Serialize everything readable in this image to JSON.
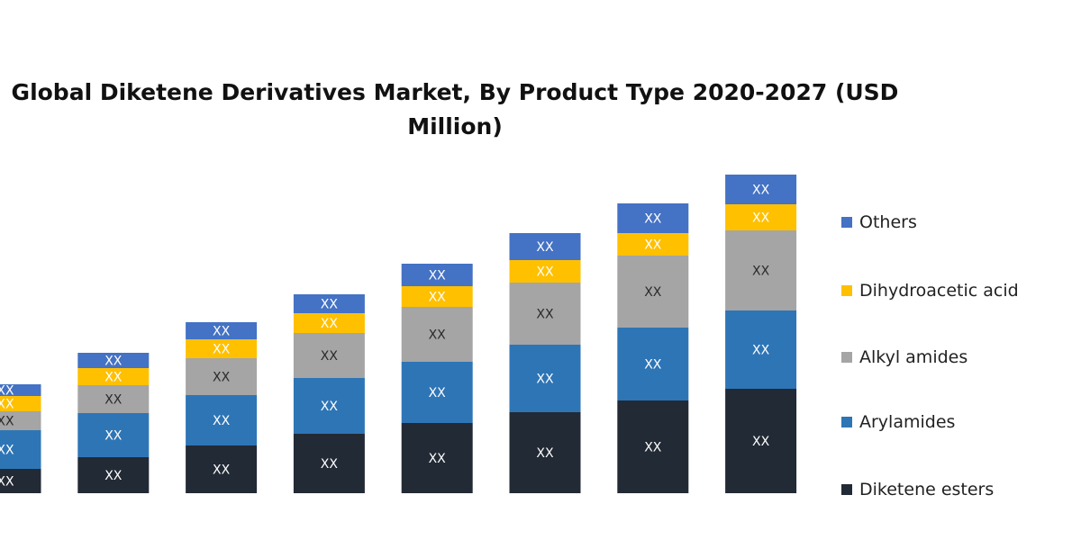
{
  "chart_data": {
    "type": "bar",
    "stacked": true,
    "title": "Global Diketene Derivatives Market, By Product Type 2020-2027 (USD Million)",
    "title_lines": [
      "Global Diketene Derivatives Market, By Product Type 2020-2027 (USD",
      "Million)"
    ],
    "categories": [
      "",
      "",
      "",
      "",
      "",
      "",
      "",
      ""
    ],
    "series": [
      {
        "name": "Diketene esters",
        "color": "#222a35",
        "values": [
          27,
          40,
          53,
          66,
          78,
          90,
          103,
          116
        ],
        "labels": [
          "XX",
          "XX",
          "XX",
          "XX",
          "XX",
          "XX",
          "XX",
          "XX"
        ]
      },
      {
        "name": "Arylamides",
        "color": "#2e75b6",
        "values": [
          43,
          49,
          56,
          62,
          68,
          75,
          81,
          87
        ],
        "labels": [
          "XX",
          "XX",
          "XX",
          "XX",
          "XX",
          "XX",
          "XX",
          "XX"
        ]
      },
      {
        "name": "Alkyl amides",
        "color": "#a5a5a5",
        "values": [
          21,
          31,
          41,
          50,
          61,
          69,
          80,
          89
        ],
        "labels": [
          "XX",
          "XX",
          "XX",
          "XX",
          "XX",
          "XX",
          "XX",
          "XX"
        ]
      },
      {
        "name": "Dihydroacetic acid",
        "color": "#ffc000",
        "values": [
          17,
          19,
          21,
          22,
          23,
          25,
          25,
          29
        ],
        "labels": [
          "XX",
          "XX",
          "XX",
          "XX",
          "XX",
          "XX",
          "XX",
          "XX"
        ]
      },
      {
        "name": "Others",
        "color": "#4472c4",
        "values": [
          13,
          17,
          19,
          21,
          25,
          30,
          33,
          33
        ],
        "labels": [
          "XX",
          "XX",
          "XX",
          "XX",
          "XX",
          "XX",
          "XX",
          "XX"
        ]
      }
    ],
    "ylim": [
      0,
      360
    ],
    "xlabel": "",
    "ylabel": "",
    "grid": false,
    "legend_position": "right",
    "legend_order": [
      "Others",
      "Dihydroacetic acid",
      "Alkyl amides",
      "Arylamides",
      "Diketene esters"
    ]
  }
}
